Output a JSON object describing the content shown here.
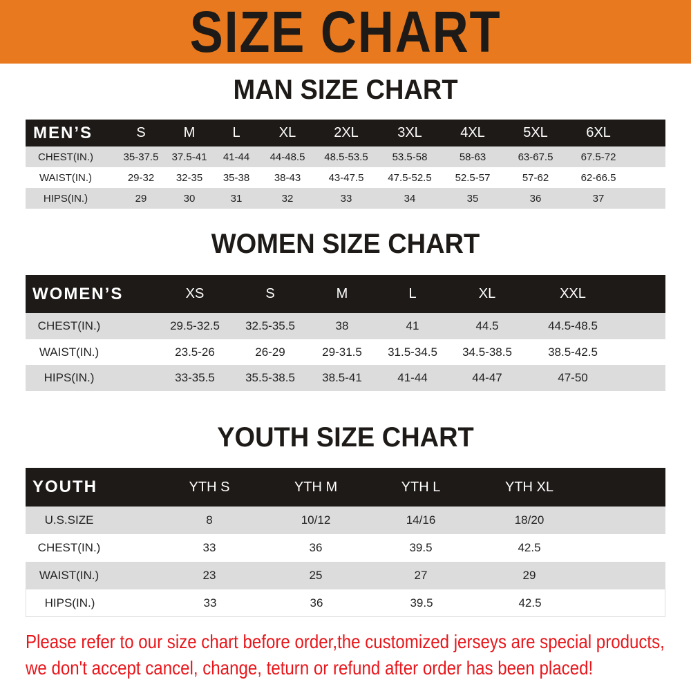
{
  "banner_title": "SIZE CHART",
  "colors": {
    "banner": "#e8791e",
    "header_row": "#1e1a18",
    "stripe": "#dcdcdc",
    "notice": "#e8161b"
  },
  "men": {
    "title": "MAN SIZE CHART",
    "corner": "MEN’S",
    "sizes": [
      "S",
      "M",
      "L",
      "XL",
      "2XL",
      "3XL",
      "4XL",
      "5XL",
      "6XL"
    ],
    "rows": [
      {
        "label": "CHEST(IN.)",
        "values": [
          "35-37.5",
          "37.5-41",
          "41-44",
          "44-48.5",
          "48.5-53.5",
          "53.5-58",
          "58-63",
          "63-67.5",
          "67.5-72"
        ]
      },
      {
        "label": "WAIST(IN.)",
        "values": [
          "29-32",
          "32-35",
          "35-38",
          "38-43",
          "43-47.5",
          "47.5-52.5",
          "52.5-57",
          "57-62",
          "62-66.5"
        ]
      },
      {
        "label": "HIPS(IN.)",
        "values": [
          "29",
          "30",
          "31",
          "32",
          "33",
          "34",
          "35",
          "36",
          "37"
        ]
      }
    ]
  },
  "women": {
    "title": "WOMEN SIZE CHART",
    "corner": "WOMEN’S",
    "sizes": [
      "XS",
      "S",
      "M",
      "L",
      "XL",
      "XXL"
    ],
    "rows": [
      {
        "label": "CHEST(IN.)",
        "values": [
          "29.5-32.5",
          "32.5-35.5",
          "38",
          "41",
          "44.5",
          "44.5-48.5"
        ]
      },
      {
        "label": "WAIST(IN.)",
        "values": [
          "23.5-26",
          "26-29",
          "29-31.5",
          "31.5-34.5",
          "34.5-38.5",
          "38.5-42.5"
        ]
      },
      {
        "label": "HIPS(IN.)",
        "values": [
          "33-35.5",
          "35.5-38.5",
          "38.5-41",
          "41-44",
          "44-47",
          "47-50"
        ]
      }
    ]
  },
  "youth": {
    "title": "YOUTH SIZE CHART",
    "corner": "YOUTH",
    "sizes": [
      "YTH S",
      "YTH M",
      "YTH L",
      "YTH XL"
    ],
    "rows": [
      {
        "label": "U.S.SIZE",
        "values": [
          "8",
          "10/12",
          "14/16",
          "18/20"
        ]
      },
      {
        "label": "CHEST(IN.)",
        "values": [
          "33",
          "36",
          "39.5",
          "42.5"
        ]
      },
      {
        "label": "WAIST(IN.)",
        "values": [
          "23",
          "25",
          "27",
          "29"
        ]
      },
      {
        "label": "HIPS(IN.)",
        "values": [
          "33",
          "36",
          "39.5",
          "42.5"
        ]
      }
    ]
  },
  "notice": {
    "line1": "Please refer to our size chart before order,the customized jerseys are special products,",
    "line2": "we don't accept cancel, change, teturn or refund after order has been placed!"
  }
}
